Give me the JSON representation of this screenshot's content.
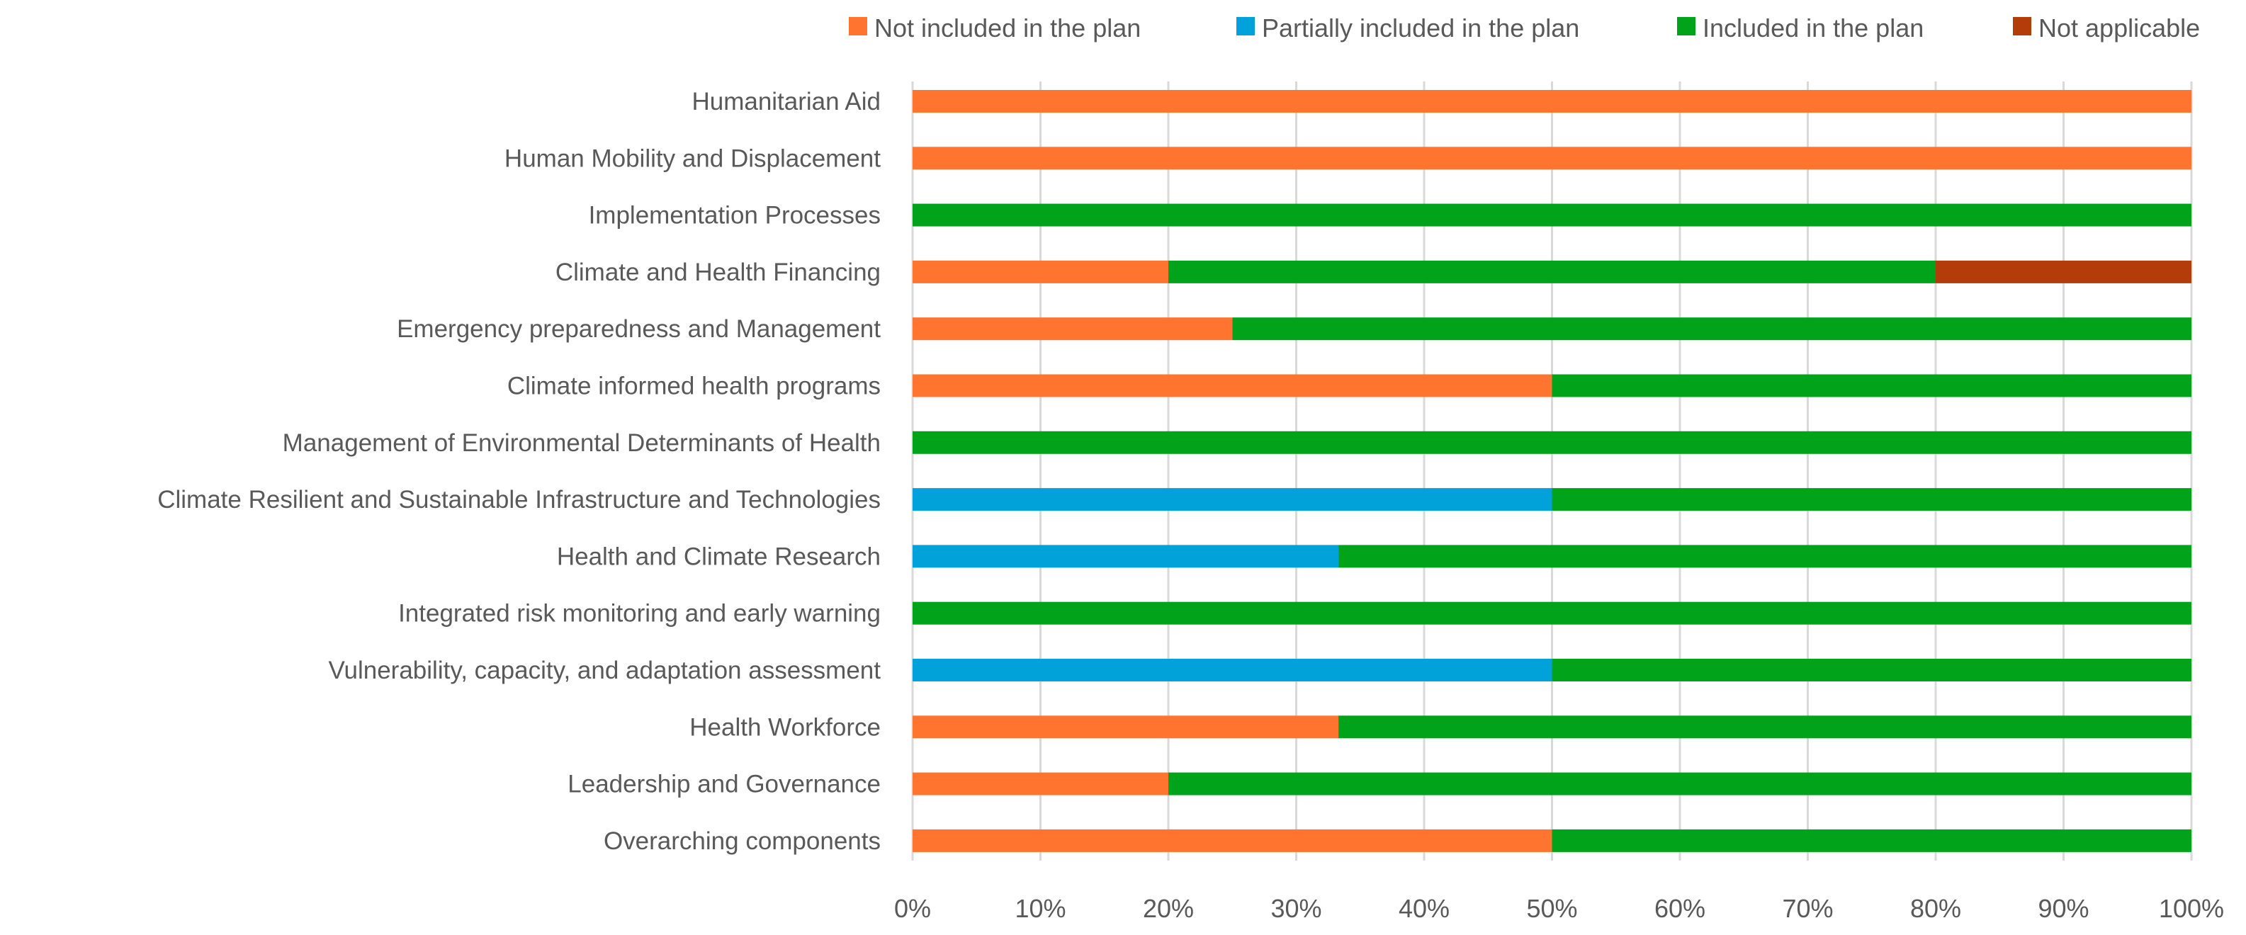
{
  "chart_data": {
    "type": "bar",
    "orientation": "horizontal",
    "stacked": "percent",
    "title": "",
    "xlabel": "",
    "ylabel": "",
    "xlim": [
      0,
      100
    ],
    "grid": true,
    "legend_position": "top",
    "categories": [
      "Humanitarian Aid",
      "Human Mobility and Displacement",
      "Implementation Processes",
      "Climate and Health Financing",
      "Emergency preparedness and Management",
      "Climate informed health programs",
      "Management of Environmental Determinants of Health",
      "Climate Resilient and Sustainable Infrastructure and Technologies",
      "Health and Climate Research",
      "Integrated risk monitoring and early warning",
      "Vulnerability, capacity, and adaptation assessment",
      "Health Workforce",
      "Leadership and Governance",
      "Overarching components"
    ],
    "series": [
      {
        "name": "Not included in the plan",
        "color": "#ff7530",
        "values": [
          100,
          100,
          0,
          20,
          25,
          50,
          0,
          0,
          0,
          0,
          0,
          33.3,
          20,
          50
        ]
      },
      {
        "name": "Partially included in the plan",
        "color": "#00a2d9",
        "values": [
          0,
          0,
          0,
          0,
          0,
          0,
          0,
          50,
          33.3,
          0,
          50,
          0,
          0,
          0
        ]
      },
      {
        "name": "Included in the plan",
        "color": "#00a31a",
        "values": [
          0,
          0,
          100,
          60,
          75,
          50,
          100,
          50,
          66.7,
          100,
          50,
          66.7,
          80,
          50
        ]
      },
      {
        "name": "Not applicable",
        "color": "#b33c0a",
        "values": [
          0,
          0,
          0,
          20,
          0,
          0,
          0,
          0,
          0,
          0,
          0,
          0,
          0,
          0
        ]
      }
    ],
    "tick_labels": [
      "0%",
      "10%",
      "20%",
      "30%",
      "40%",
      "50%",
      "60%",
      "70%",
      "80%",
      "90%",
      "100%"
    ]
  }
}
